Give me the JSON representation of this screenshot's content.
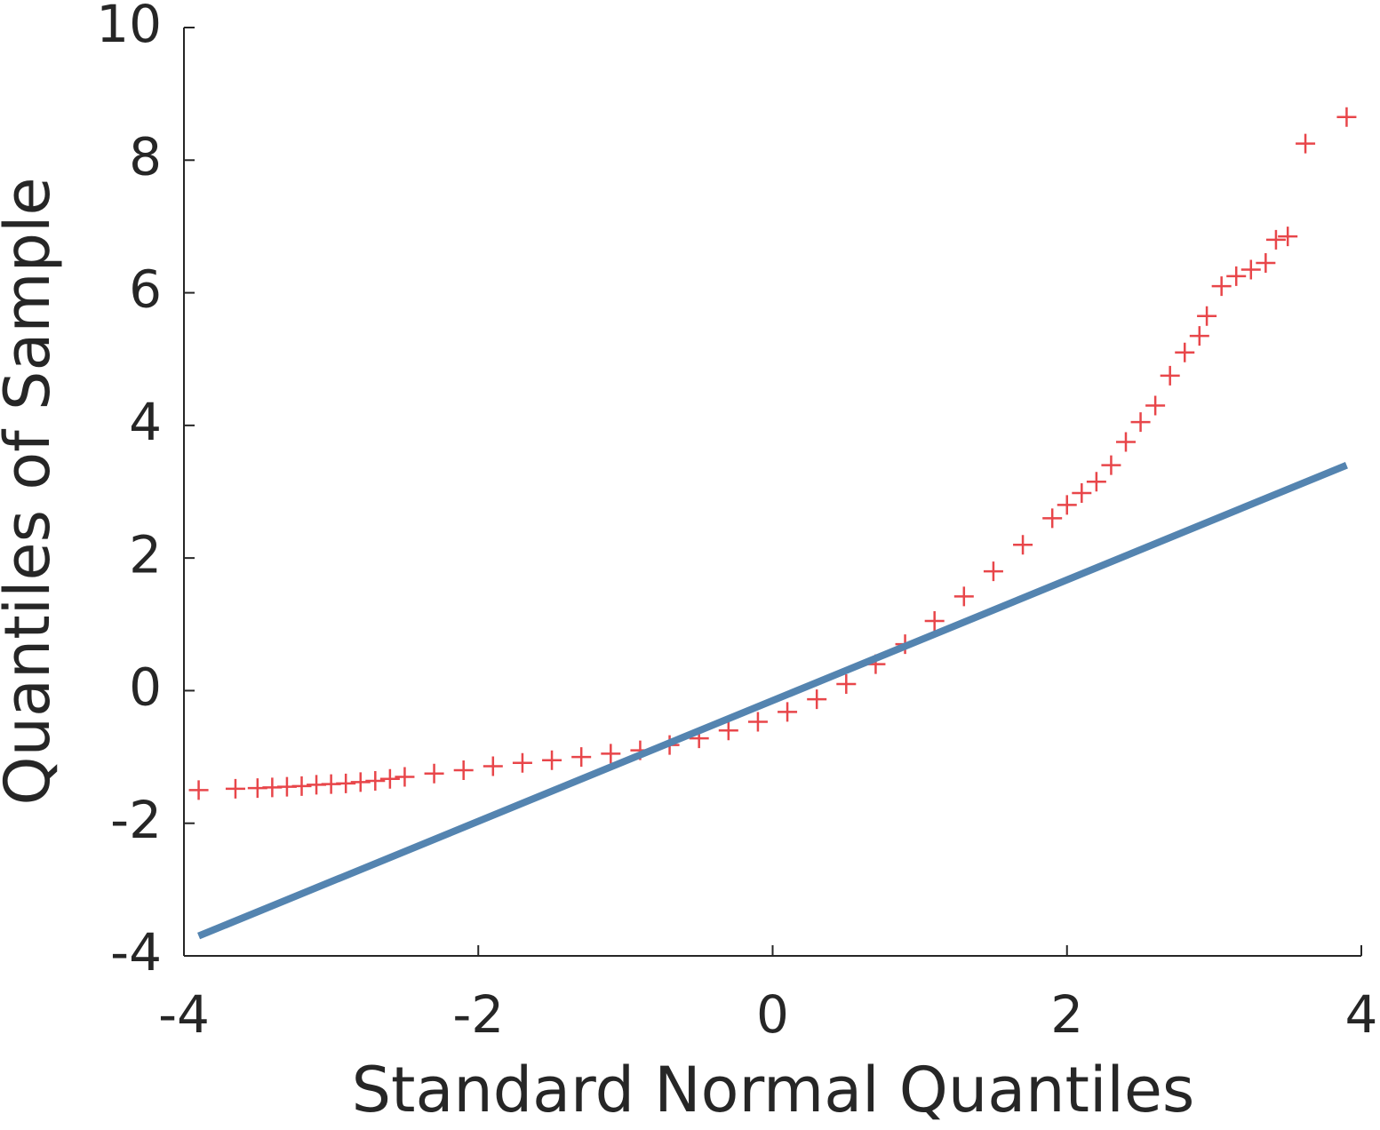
{
  "chart_data": {
    "type": "scatter",
    "xlabel": "Standard Normal Quantiles",
    "ylabel": "Quantiles of Sample",
    "xlim": [
      -4,
      4
    ],
    "ylim": [
      -4,
      10
    ],
    "xticks": [
      -4,
      -2,
      0,
      2,
      4
    ],
    "yticks": [
      -4,
      -2,
      0,
      2,
      4,
      6,
      8,
      10
    ],
    "grid": false,
    "series": [
      {
        "type": "scatter",
        "marker": "+",
        "color": "#e8464a",
        "x": [
          -3.9,
          -3.65,
          -3.5,
          -3.4,
          -3.3,
          -3.2,
          -3.1,
          -3.0,
          -2.9,
          -2.8,
          -2.7,
          -2.6,
          -2.5,
          -2.3,
          -2.1,
          -1.9,
          -1.7,
          -1.5,
          -1.3,
          -1.1,
          -0.9,
          -0.7,
          -0.5,
          -0.3,
          -0.1,
          0.1,
          0.3,
          0.5,
          0.7,
          0.9,
          1.1,
          1.3,
          1.5,
          1.7,
          1.9,
          2.0,
          2.1,
          2.2,
          2.3,
          2.4,
          2.5,
          2.6,
          2.7,
          2.8,
          2.9,
          2.95,
          3.05,
          3.15,
          3.25,
          3.35,
          3.42,
          3.5,
          3.62,
          3.9
        ],
        "values": [
          -1.5,
          -1.48,
          -1.47,
          -1.46,
          -1.45,
          -1.44,
          -1.42,
          -1.41,
          -1.4,
          -1.38,
          -1.36,
          -1.33,
          -1.3,
          -1.25,
          -1.2,
          -1.14,
          -1.09,
          -1.05,
          -1.0,
          -0.95,
          -0.9,
          -0.82,
          -0.72,
          -0.6,
          -0.47,
          -0.32,
          -0.13,
          0.1,
          0.4,
          0.7,
          1.05,
          1.42,
          1.8,
          2.2,
          2.6,
          2.8,
          2.98,
          3.15,
          3.4,
          3.75,
          4.05,
          4.3,
          4.75,
          5.1,
          5.35,
          5.65,
          6.1,
          6.25,
          6.35,
          6.45,
          6.8,
          6.85,
          8.25,
          8.65
        ]
      },
      {
        "type": "line",
        "color": "#5484b0",
        "x": [
          -3.9,
          3.9
        ],
        "values": [
          -3.7,
          3.4
        ]
      }
    ]
  }
}
